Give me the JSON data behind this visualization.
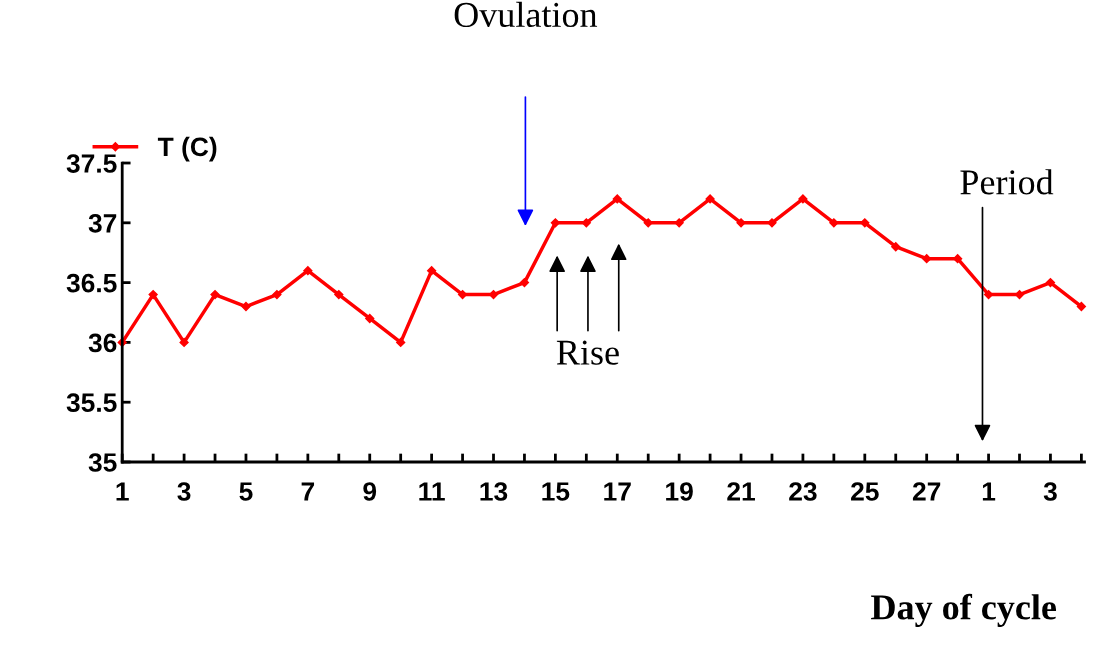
{
  "chart_data": {
    "type": "line",
    "xlabel": "Day of cycle",
    "categories": [
      "1",
      null,
      "3",
      null,
      "5",
      null,
      "7",
      null,
      "9",
      null,
      "11",
      null,
      "13",
      null,
      "15",
      null,
      "17",
      null,
      "19",
      null,
      "21",
      null,
      "23",
      null,
      "25",
      null,
      "27",
      null,
      "1",
      null,
      "3",
      null
    ],
    "series": [
      {
        "name": "T (C)",
        "color": "#ff0000",
        "values": [
          36.0,
          36.4,
          36.0,
          36.4,
          36.3,
          36.4,
          36.6,
          36.4,
          36.2,
          36.0,
          36.6,
          36.4,
          36.4,
          36.5,
          37.0,
          37.0,
          37.2,
          37.0,
          37.0,
          37.2,
          37.0,
          37.0,
          37.2,
          37.0,
          37.0,
          36.8,
          36.7,
          36.7,
          36.4,
          36.4,
          36.5,
          36.3
        ]
      }
    ],
    "ylim": [
      35,
      37.5
    ],
    "yticks": [
      35,
      35.5,
      36,
      36.5,
      37,
      37.5
    ],
    "annotations": [
      "Ovulation",
      "Rise",
      "Period"
    ],
    "marker": "diamond",
    "line_style": "solid",
    "legend": "top left",
    "grid": false
  }
}
